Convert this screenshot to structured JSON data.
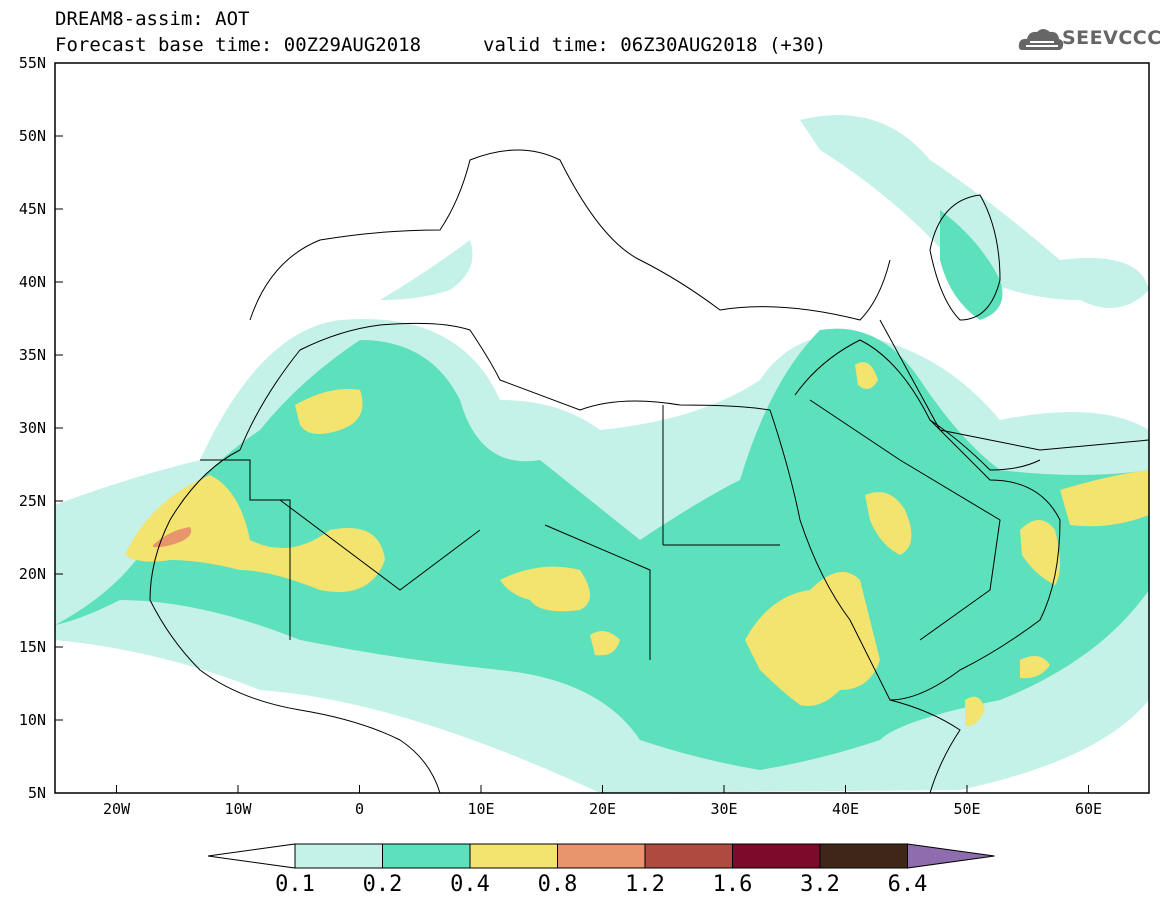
{
  "title": {
    "line1": "DREAM8-assim: AOT",
    "line2": "Forecast base time: 00Z29AUG2018",
    "line2b": "valid time: 06Z30AUG2018 (+30)"
  },
  "logo": {
    "text": "SEEVCCC",
    "icon": "cloud-icon"
  },
  "axes": {
    "lat_labels": [
      "55N",
      "50N",
      "45N",
      "40N",
      "35N",
      "30N",
      "25N",
      "20N",
      "15N",
      "10N",
      "5N"
    ],
    "lon_labels": [
      "20W",
      "10W",
      "0",
      "10E",
      "20E",
      "30E",
      "40E",
      "50E",
      "60E"
    ]
  },
  "colorbar": {
    "labels": [
      "0.1",
      "0.2",
      "0.4",
      "0.8",
      "1.2",
      "1.6",
      "3.2",
      "6.4"
    ],
    "colors": [
      "#ffffff",
      "#c4f1e8",
      "#5ce1bc",
      "#f3e36f",
      "#e8946c",
      "#ae4b3e",
      "#7e0a2b",
      "#3e2718",
      "#8f6cad"
    ]
  },
  "colors": {
    "c01": "#c4f1e8",
    "c02": "#5ce1bc",
    "c04": "#f3e36f",
    "c08": "#e8946c"
  }
}
